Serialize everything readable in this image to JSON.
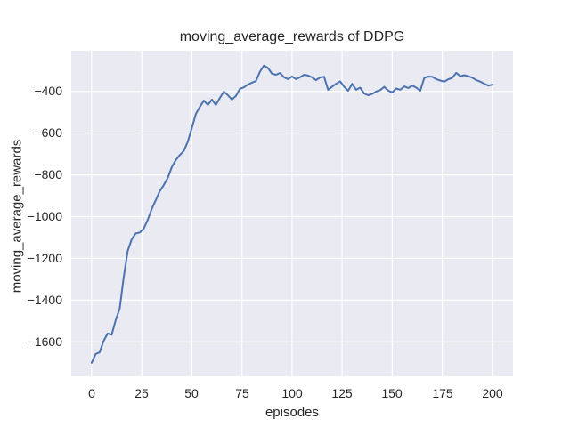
{
  "figure": {
    "background": "#ffffff"
  },
  "chart_data": {
    "type": "line",
    "title": "moving_average_rewards of DDPG",
    "xlabel": "episodes",
    "ylabel": "moving_average_rewards",
    "grid": true,
    "xlim": [
      -10.2,
      210.3
    ],
    "ylim": [
      -1765,
      -205
    ],
    "xtick_values": [
      0,
      25,
      50,
      75,
      100,
      125,
      150,
      175,
      200
    ],
    "xtick_labels": [
      "0",
      "25",
      "50",
      "75",
      "100",
      "125",
      "150",
      "175",
      "200"
    ],
    "ytick_values": [
      -400,
      -600,
      -800,
      -1000,
      -1200,
      -1400,
      -1600
    ],
    "ytick_labels": [
      "−400",
      "−600",
      "−800",
      "−1000",
      "−1200",
      "−1400",
      "−1600"
    ],
    "colors": {
      "line": "#4c72b0",
      "plot_background": "#eaeaf2",
      "grid": "#ffffff",
      "text": "#262626"
    },
    "series": [
      {
        "name": "moving_average_rewards",
        "x": [
          0,
          2,
          4,
          6,
          8,
          10,
          12,
          14,
          16,
          18,
          20,
          22,
          24,
          26,
          28,
          30,
          32,
          34,
          36,
          38,
          40,
          42,
          44,
          46,
          48,
          50,
          52,
          54,
          56,
          58,
          60,
          62,
          64,
          66,
          68,
          70,
          72,
          74,
          76,
          78,
          80,
          82,
          84,
          86,
          88,
          90,
          92,
          94,
          96,
          98,
          100,
          102,
          104,
          106,
          108,
          110,
          112,
          114,
          116,
          118,
          120,
          122,
          124,
          126,
          128,
          130,
          132,
          134,
          136,
          138,
          140,
          142,
          144,
          146,
          148,
          150,
          152,
          154,
          156,
          158,
          160,
          162,
          164,
          166,
          168,
          170,
          172,
          174,
          176,
          178,
          180,
          182,
          184,
          186,
          188,
          190,
          192,
          194,
          196,
          198,
          200
        ],
        "y": [
          -1700,
          -1658,
          -1650,
          -1595,
          -1560,
          -1566,
          -1496,
          -1440,
          -1290,
          -1164,
          -1108,
          -1080,
          -1076,
          -1057,
          -1015,
          -963,
          -921,
          -878,
          -848,
          -814,
          -763,
          -729,
          -705,
          -685,
          -640,
          -575,
          -508,
          -474,
          -444,
          -465,
          -439,
          -465,
          -431,
          -401,
          -418,
          -439,
          -422,
          -388,
          -380,
          -367,
          -358,
          -350,
          -305,
          -276,
          -288,
          -315,
          -320,
          -312,
          -332,
          -341,
          -328,
          -341,
          -332,
          -320,
          -324,
          -333,
          -346,
          -333,
          -330,
          -392,
          -377,
          -363,
          -352,
          -377,
          -397,
          -364,
          -392,
          -382,
          -410,
          -418,
          -412,
          -400,
          -394,
          -378,
          -396,
          -405,
          -386,
          -392,
          -376,
          -384,
          -372,
          -382,
          -397,
          -335,
          -329,
          -330,
          -341,
          -348,
          -353,
          -342,
          -335,
          -311,
          -327,
          -322,
          -327,
          -334,
          -346,
          -353,
          -363,
          -372,
          -368
        ]
      }
    ]
  }
}
